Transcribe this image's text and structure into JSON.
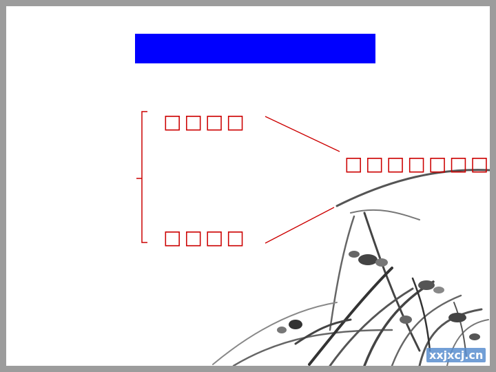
{
  "slide": {
    "title": "",
    "accent_color": "#0000ff",
    "text_color": "#cc0000"
  },
  "diagram": {
    "top_item": "□□□□",
    "bottom_item": "□□□□",
    "right_item": "□□□□□□□□□"
  },
  "watermark": {
    "text": "xxjxcj.cn"
  }
}
